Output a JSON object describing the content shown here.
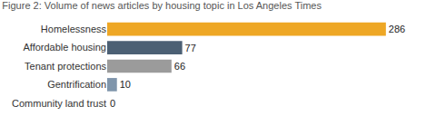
{
  "chart_data": {
    "type": "bar",
    "orientation": "horizontal",
    "title": "Figure 2: Volume of news articles by housing topic in Los Angeles Times",
    "categories": [
      "Homelessness",
      "Affordable housing",
      "Tenant protections",
      "Gentrification",
      "Community land trust"
    ],
    "values": [
      286,
      77,
      66,
      10,
      0
    ],
    "colors": [
      "#eea725",
      "#4c6074",
      "#9b9b9b",
      "#7f95ab",
      "#7f95ab"
    ],
    "data_labels": true,
    "tick_labels": "y",
    "grid": false
  }
}
